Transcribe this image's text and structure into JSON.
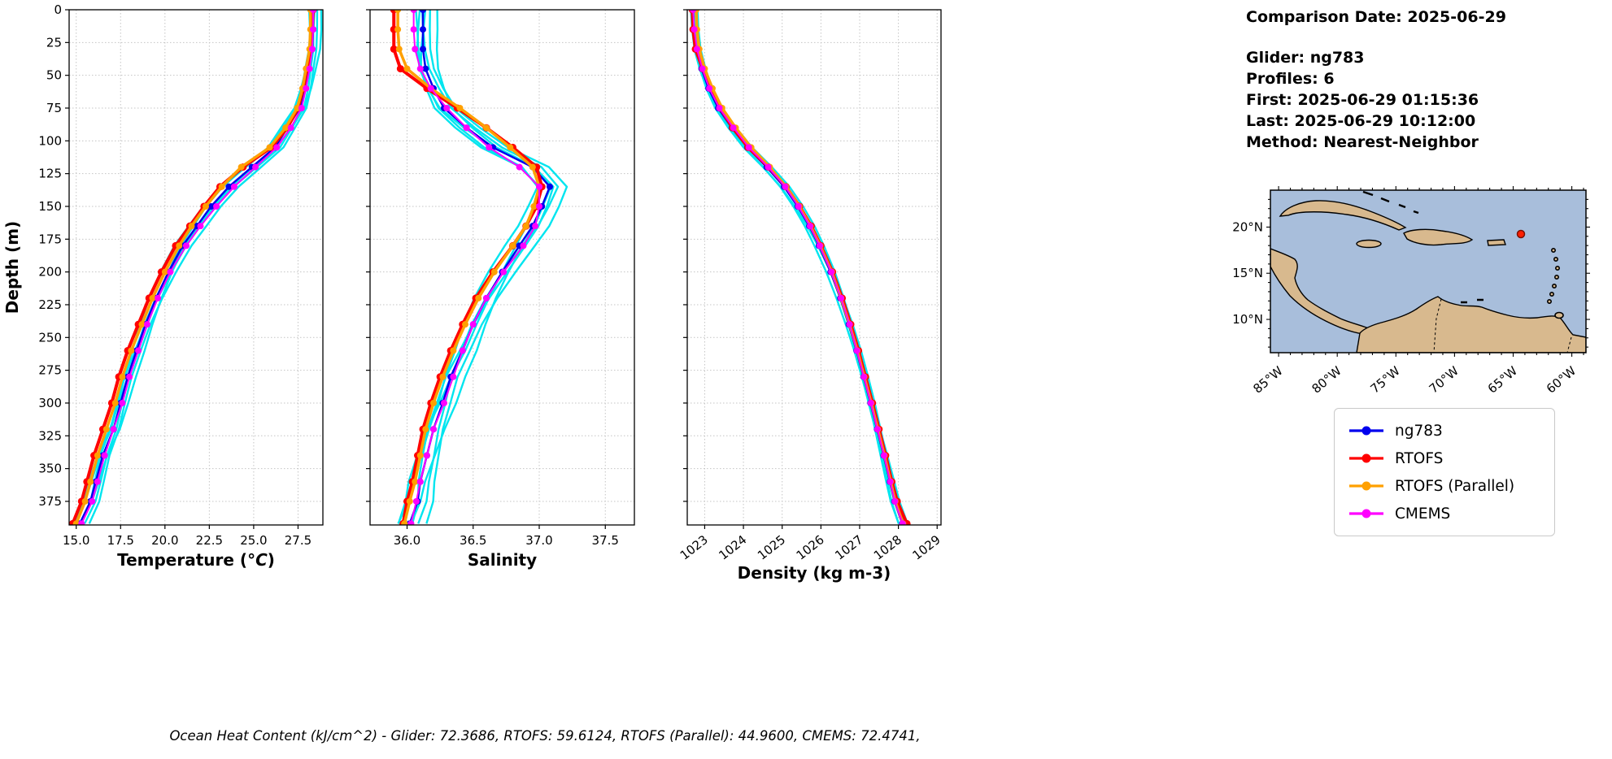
{
  "info": {
    "title": "Comparison Date: 2025-06-29",
    "lines": [
      "Glider: ng783",
      "Profiles: 6",
      "First: 2025-06-29 01:15:36",
      "Last: 2025-06-29 10:12:00",
      "Method: Nearest-Neighbor"
    ]
  },
  "footer": {
    "text": "Ocean Heat Content (kJ/cm^2) - Glider: 72.3686,  RTOFS: 59.6124,  RTOFS (Parallel): 44.9600,  CMEMS: 72.4741,"
  },
  "legend": {
    "items": [
      {
        "label": "ng783",
        "color": "#0000ee"
      },
      {
        "label": "RTOFS",
        "color": "#ff0000"
      },
      {
        "label": "RTOFS (Parallel)",
        "color": "#ffa000"
      },
      {
        "label": "CMEMS",
        "color": "#ff00ff"
      }
    ]
  },
  "map": {
    "lat_labels": [
      "20°N",
      "15°N",
      "10°N"
    ],
    "lon_labels": [
      "85°W",
      "80°W",
      "75°W",
      "70°W",
      "65°W",
      "60°W"
    ],
    "water_color": "#a8bedb",
    "land_color": "#d8b98e",
    "marker_color": "#ff1f00"
  },
  "raw_profiles": {
    "color": "#00e5ef",
    "count": 6,
    "offsets": [
      -0.55,
      -0.25,
      0.0,
      0.22,
      0.45,
      0.7
    ],
    "amps": [
      0.3,
      0.45,
      0.35,
      0.3,
      0.4,
      0.3
    ],
    "phases": [
      0.5,
      2.1,
      3.7,
      5.2,
      1.3,
      4.4
    ]
  },
  "chart_data": [
    {
      "type": "line",
      "title": "",
      "xlabel_parts": [
        [
          "Temperature (",
          false
        ],
        [
          "°C",
          true
        ],
        [
          ")",
          false
        ]
      ],
      "ylabel": "Depth (m)",
      "xlim": [
        14.6,
        28.9
      ],
      "ylim": [
        0,
        393
      ],
      "xticks": [
        15.0,
        17.5,
        20.0,
        22.5,
        25.0,
        27.5
      ],
      "xtick_labels": [
        "15.0",
        "17.5",
        "20.0",
        "22.5",
        "25.0",
        "27.5"
      ],
      "yticks": [
        0,
        25,
        50,
        75,
        100,
        125,
        150,
        175,
        200,
        225,
        250,
        275,
        300,
        325,
        350,
        375
      ],
      "rotate_xticks": false,
      "grid": true,
      "raw_spread": 0.55,
      "depths": [
        0,
        15,
        30,
        45,
        60,
        75,
        90,
        105,
        120,
        135,
        150,
        165,
        180,
        200,
        220,
        240,
        260,
        280,
        300,
        320,
        340,
        360,
        375,
        392
      ],
      "series": [
        {
          "name": "ng783",
          "color": "#0000ee",
          "lw": 2.5,
          "mr": 4,
          "values": [
            28.35,
            28.35,
            28.3,
            28.1,
            27.9,
            27.6,
            26.9,
            26.2,
            24.9,
            23.6,
            22.6,
            21.8,
            21.0,
            20.2,
            19.5,
            18.9,
            18.4,
            17.9,
            17.5,
            17.1,
            16.5,
            16.1,
            15.8,
            15.2
          ]
        },
        {
          "name": "RTOFS",
          "color": "#ff0000",
          "lw": 4,
          "mr": 4.5,
          "values": [
            28.35,
            28.3,
            28.25,
            28.0,
            27.8,
            27.5,
            26.9,
            26.0,
            24.4,
            23.1,
            22.2,
            21.4,
            20.6,
            19.8,
            19.1,
            18.5,
            17.9,
            17.4,
            17.0,
            16.5,
            16.0,
            15.6,
            15.3,
            14.8
          ]
        },
        {
          "name": "RTOFS (Parallel)",
          "color": "#ffa000",
          "lw": 3.5,
          "mr": 4,
          "values": [
            28.2,
            28.2,
            28.15,
            27.95,
            27.75,
            27.45,
            26.8,
            25.9,
            24.3,
            23.2,
            22.3,
            21.5,
            20.8,
            20.0,
            19.3,
            18.7,
            18.1,
            17.6,
            17.2,
            16.7,
            16.2,
            15.8,
            15.5,
            15.0
          ]
        },
        {
          "name": "CMEMS",
          "color": "#ff00ff",
          "lw": 2,
          "mr": 4,
          "values": [
            28.35,
            28.35,
            28.3,
            28.15,
            27.95,
            27.7,
            27.1,
            26.3,
            25.1,
            23.9,
            22.9,
            22.0,
            21.2,
            20.3,
            19.6,
            19.0,
            18.5,
            18.0,
            17.6,
            17.1,
            16.6,
            16.2,
            15.9,
            15.3
          ]
        }
      ]
    },
    {
      "type": "line",
      "title": "",
      "xlabel_parts": [
        [
          "Salinity",
          false
        ]
      ],
      "ylabel": "Depth (m)",
      "xlim": [
        35.72,
        37.72
      ],
      "ylim": [
        0,
        393
      ],
      "xticks": [
        36.0,
        36.5,
        37.0,
        37.5
      ],
      "xtick_labels": [
        "36.0",
        "36.5",
        "37.0",
        "37.5"
      ],
      "yticks": [
        0,
        25,
        50,
        75,
        100,
        125,
        150,
        175,
        200,
        225,
        250,
        275,
        300,
        325,
        350,
        375
      ],
      "rotate_xticks": false,
      "grid": true,
      "raw_spread": 0.13,
      "depths": [
        0,
        15,
        30,
        45,
        60,
        75,
        90,
        105,
        120,
        135,
        150,
        165,
        180,
        200,
        220,
        240,
        260,
        280,
        300,
        320,
        340,
        360,
        375,
        392
      ],
      "series": [
        {
          "name": "ng783",
          "color": "#0000ee",
          "lw": 2.5,
          "mr": 4,
          "values": [
            36.12,
            36.12,
            36.12,
            36.14,
            36.2,
            36.28,
            36.45,
            36.65,
            36.95,
            37.08,
            37.02,
            36.95,
            36.85,
            36.72,
            36.6,
            36.5,
            36.42,
            36.33,
            36.27,
            36.2,
            36.15,
            36.1,
            36.08,
            36.02
          ]
        },
        {
          "name": "RTOFS",
          "color": "#ff0000",
          "lw": 4,
          "mr": 4.5,
          "values": [
            35.9,
            35.9,
            35.9,
            35.95,
            36.15,
            36.38,
            36.6,
            36.8,
            36.98,
            37.02,
            36.98,
            36.9,
            36.8,
            36.65,
            36.52,
            36.42,
            36.33,
            36.25,
            36.18,
            36.12,
            36.08,
            36.04,
            36.0,
            35.97
          ]
        },
        {
          "name": "RTOFS (Parallel)",
          "color": "#ffa000",
          "lw": 3.5,
          "mr": 4,
          "values": [
            35.93,
            35.93,
            35.94,
            36.0,
            36.18,
            36.4,
            36.6,
            36.78,
            36.95,
            37.0,
            36.96,
            36.9,
            36.8,
            36.66,
            36.54,
            36.44,
            36.35,
            36.27,
            36.2,
            36.14,
            36.1,
            36.06,
            36.02,
            35.98
          ]
        },
        {
          "name": "CMEMS",
          "color": "#ff00ff",
          "lw": 2,
          "mr": 4,
          "values": [
            36.05,
            36.05,
            36.06,
            36.1,
            36.18,
            36.3,
            36.45,
            36.62,
            36.85,
            37.0,
            37.0,
            36.97,
            36.88,
            36.73,
            36.6,
            36.5,
            36.42,
            36.35,
            36.28,
            36.2,
            36.15,
            36.1,
            36.07,
            36.03
          ]
        }
      ]
    },
    {
      "type": "line",
      "title": "",
      "xlabel_parts": [
        [
          "Density (kg m-3)",
          false
        ]
      ],
      "ylabel": "Depth (m)",
      "xlim": [
        1022.55,
        1029.1
      ],
      "ylim": [
        0,
        393
      ],
      "xticks": [
        1023,
        1024,
        1025,
        1026,
        1027,
        1028,
        1029
      ],
      "xtick_labels": [
        "1023",
        "1024",
        "1025",
        "1026",
        "1027",
        "1028",
        "1029"
      ],
      "yticks": [
        0,
        25,
        50,
        75,
        100,
        125,
        150,
        175,
        200,
        225,
        250,
        275,
        300,
        325,
        350,
        375
      ],
      "rotate_xticks": true,
      "grid": true,
      "raw_spread": 0.14,
      "depths": [
        0,
        15,
        30,
        45,
        60,
        75,
        90,
        105,
        120,
        135,
        150,
        165,
        180,
        200,
        220,
        240,
        260,
        280,
        300,
        320,
        340,
        360,
        375,
        392
      ],
      "series": [
        {
          "name": "ng783",
          "color": "#0000ee",
          "lw": 2.5,
          "mr": 4,
          "values": [
            1022.7,
            1022.72,
            1022.78,
            1022.92,
            1023.1,
            1023.35,
            1023.7,
            1024.1,
            1024.6,
            1025.05,
            1025.4,
            1025.7,
            1025.95,
            1026.25,
            1026.5,
            1026.72,
            1026.92,
            1027.1,
            1027.28,
            1027.45,
            1027.62,
            1027.78,
            1027.9,
            1028.1
          ]
        },
        {
          "name": "RTOFS",
          "color": "#ff0000",
          "lw": 4,
          "mr": 4.5,
          "values": [
            1022.68,
            1022.7,
            1022.76,
            1022.95,
            1023.15,
            1023.4,
            1023.72,
            1024.12,
            1024.65,
            1025.1,
            1025.45,
            1025.75,
            1026.0,
            1026.3,
            1026.55,
            1026.77,
            1026.97,
            1027.15,
            1027.33,
            1027.5,
            1027.67,
            1027.83,
            1027.97,
            1028.22
          ]
        },
        {
          "name": "RTOFS (Parallel)",
          "color": "#ffa000",
          "lw": 3.5,
          "mr": 4,
          "values": [
            1022.78,
            1022.8,
            1022.86,
            1023.0,
            1023.2,
            1023.45,
            1023.8,
            1024.2,
            1024.68,
            1025.1,
            1025.44,
            1025.73,
            1025.98,
            1026.28,
            1026.52,
            1026.74,
            1026.94,
            1027.12,
            1027.3,
            1027.47,
            1027.64,
            1027.8,
            1027.92,
            1028.12
          ]
        },
        {
          "name": "CMEMS",
          "color": "#ff00ff",
          "lw": 2,
          "mr": 4,
          "values": [
            1022.7,
            1022.73,
            1022.8,
            1022.94,
            1023.12,
            1023.38,
            1023.74,
            1024.14,
            1024.64,
            1025.08,
            1025.42,
            1025.72,
            1025.97,
            1026.27,
            1026.52,
            1026.74,
            1026.93,
            1027.11,
            1027.29,
            1027.46,
            1027.63,
            1027.79,
            1027.91,
            1028.11
          ]
        }
      ]
    }
  ]
}
